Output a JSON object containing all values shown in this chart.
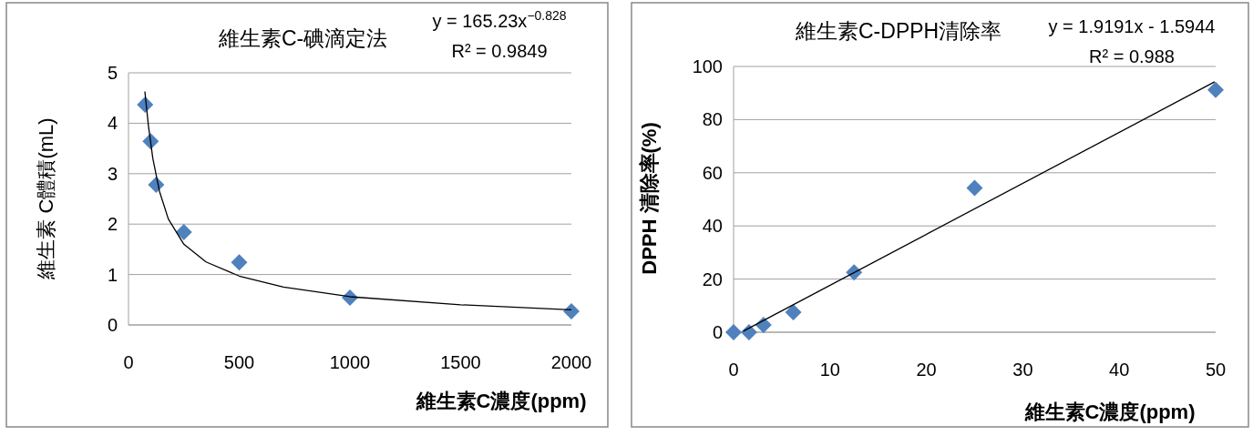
{
  "chart_data": [
    {
      "type": "scatter",
      "title": "維生素C-碘滴定法",
      "xlabel": "維生素C濃度(ppm)",
      "ylabel": "維生素 C體積(mL)",
      "annotations": [
        "y = 165.23x$^{−0.828}$",
        "R² = 0.9849"
      ],
      "xlim": [
        0,
        2000
      ],
      "xticks": [
        0,
        500,
        1000,
        1500,
        2000
      ],
      "ylim": [
        0,
        5
      ],
      "yticks": [
        0,
        1,
        2,
        3,
        4,
        5
      ],
      "grid": "y",
      "series": [
        {
          "marker": "diamond",
          "color": "#4f81bd",
          "x": [
            75,
            100,
            125,
            250,
            500,
            1000,
            2000
          ],
          "values": [
            4.37,
            3.64,
            2.78,
            1.84,
            1.24,
            0.54,
            0.27
          ]
        },
        {
          "type": "line",
          "color": "#000000",
          "x": [
            74,
            90,
            110,
            140,
            180,
            250,
            350,
            500,
            700,
            1000,
            1500,
            2000
          ],
          "values": [
            4.63,
            3.95,
            3.3,
            2.65,
            2.1,
            1.6,
            1.25,
            0.97,
            0.75,
            0.56,
            0.4,
            0.3
          ]
        }
      ]
    },
    {
      "type": "scatter",
      "title": "維生素C-DPPH清除率",
      "xlabel": "維生素C濃度(ppm)",
      "ylabel": "DPPH 清除率(%)",
      "annotations": [
        "y = 1.9191x - 1.5944",
        "R² = 0.988"
      ],
      "xlim": [
        0,
        50
      ],
      "xticks": [
        0,
        10,
        20,
        30,
        40,
        50
      ],
      "ylim": [
        0,
        100
      ],
      "yticks": [
        0,
        20,
        40,
        60,
        80,
        100
      ],
      "grid": "y",
      "series": [
        {
          "marker": "diamond",
          "color": "#4f81bd",
          "x": [
            0,
            1.6,
            3.1,
            6.2,
            12.5,
            25,
            50
          ],
          "values": [
            0,
            0,
            2.7,
            7.5,
            22.5,
            54.3,
            91.2
          ]
        },
        {
          "type": "line",
          "color": "#000000",
          "x": [
            1,
            49.9
          ],
          "values": [
            0.4,
            94.2
          ]
        }
      ]
    }
  ]
}
